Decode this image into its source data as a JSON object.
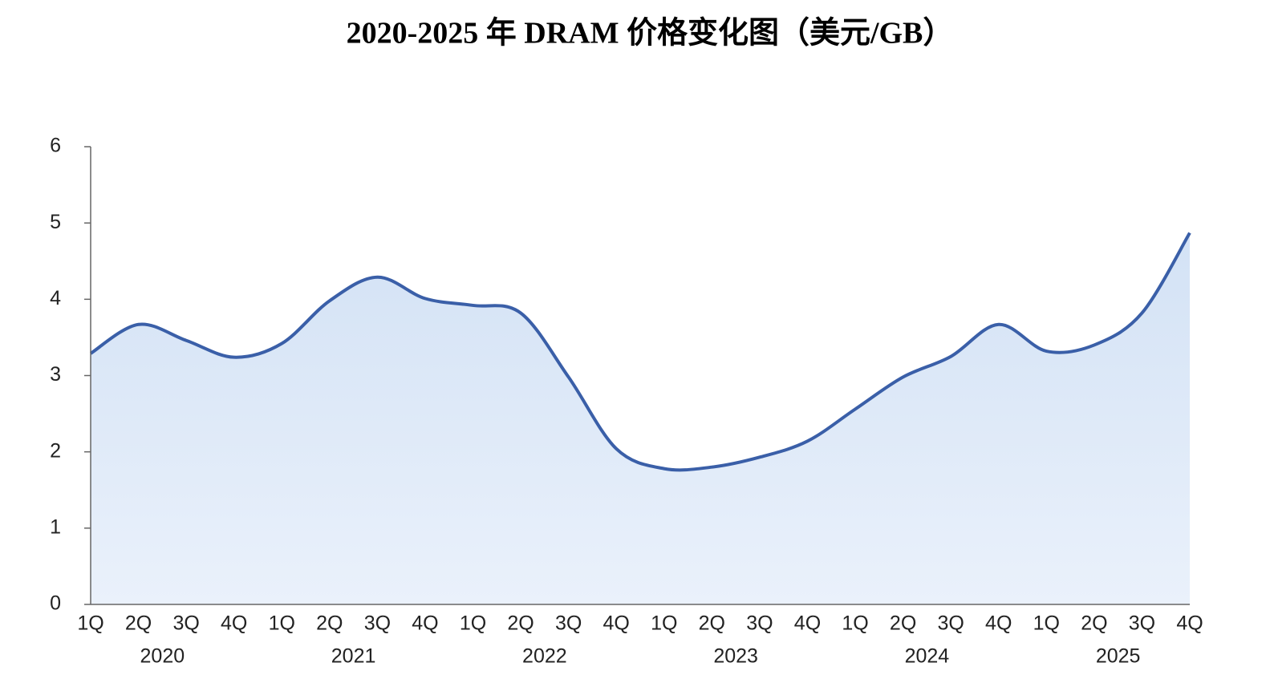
{
  "chart_data": {
    "type": "line",
    "title": "2020-2025 年 DRAM 价格变化图（美元/GB）",
    "categories": [
      "1Q",
      "2Q",
      "3Q",
      "4Q",
      "1Q",
      "2Q",
      "3Q",
      "4Q",
      "1Q",
      "2Q",
      "3Q",
      "4Q",
      "1Q",
      "2Q",
      "3Q",
      "4Q",
      "1Q",
      "2Q",
      "3Q",
      "4Q",
      "1Q",
      "2Q",
      "3Q",
      "4Q"
    ],
    "groups": [
      "2020",
      "2021",
      "2022",
      "2023",
      "2024",
      "2025"
    ],
    "series": [
      {
        "color": "#3a5fa8",
        "values": [
          3.29,
          3.67,
          3.46,
          3.24,
          3.42,
          3.98,
          4.29,
          4.01,
          3.92,
          3.82,
          2.98,
          2.04,
          1.78,
          1.8,
          1.93,
          2.14,
          2.56,
          2.98,
          3.25,
          3.67,
          3.32,
          3.4,
          3.82,
          4.87
        ]
      }
    ],
    "ylim": [
      0,
      6
    ],
    "yticks": [
      0,
      1,
      2,
      3,
      4,
      5,
      6
    ],
    "smooth": true,
    "area": true
  }
}
